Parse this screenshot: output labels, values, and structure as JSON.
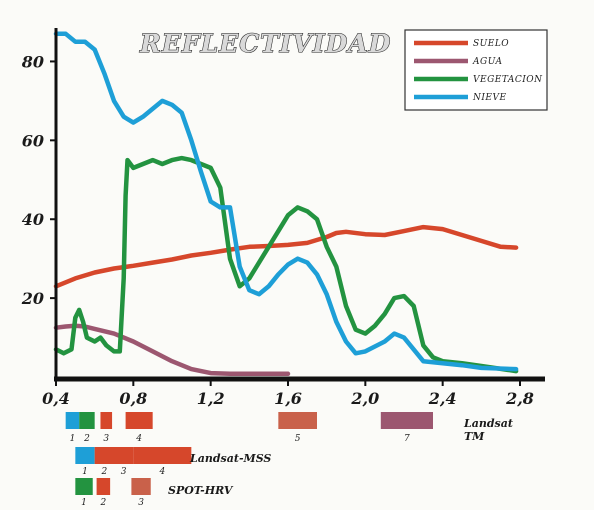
{
  "chart_data": {
    "type": "line",
    "title": "REFLECTIVIDAD",
    "xlabel": "",
    "ylabel": "",
    "xlim": [
      0.4,
      2.8
    ],
    "ylim": [
      0,
      90
    ],
    "x_ticks": [
      "0,4",
      "0,8",
      "1,2",
      "1,6",
      "2,0",
      "2,4",
      "2,8"
    ],
    "x_tick_values": [
      0.4,
      0.8,
      1.2,
      1.6,
      2.0,
      2.4,
      2.8
    ],
    "y_ticks": [
      "20",
      "40",
      "60",
      "80"
    ],
    "y_tick_values": [
      20,
      40,
      60,
      80
    ],
    "grid": false,
    "legend_position": "top-right",
    "series": [
      {
        "name": "SUELO",
        "color": "#d6472b",
        "points": [
          [
            0.4,
            23
          ],
          [
            0.5,
            25
          ],
          [
            0.6,
            26.5
          ],
          [
            0.7,
            27.5
          ],
          [
            0.8,
            28.2
          ],
          [
            0.9,
            29
          ],
          [
            1.0,
            29.8
          ],
          [
            1.1,
            30.8
          ],
          [
            1.2,
            31.5
          ],
          [
            1.3,
            32.3
          ],
          [
            1.4,
            33
          ],
          [
            1.5,
            33.2
          ],
          [
            1.6,
            33.5
          ],
          [
            1.7,
            34
          ],
          [
            1.8,
            35.5
          ],
          [
            1.85,
            36.5
          ],
          [
            1.9,
            36.8
          ],
          [
            2.0,
            36.2
          ],
          [
            2.1,
            36
          ],
          [
            2.2,
            37
          ],
          [
            2.3,
            38
          ],
          [
            2.4,
            37.5
          ],
          [
            2.5,
            36
          ],
          [
            2.6,
            34.5
          ],
          [
            2.7,
            33
          ],
          [
            2.78,
            32.8
          ]
        ]
      },
      {
        "name": "AGUA",
        "color": "#9c5770",
        "points": [
          [
            0.4,
            12.5
          ],
          [
            0.45,
            12.8
          ],
          [
            0.5,
            13
          ],
          [
            0.55,
            12.8
          ],
          [
            0.6,
            12.2
          ],
          [
            0.7,
            11
          ],
          [
            0.8,
            9
          ],
          [
            0.9,
            6.5
          ],
          [
            1.0,
            4
          ],
          [
            1.1,
            2
          ],
          [
            1.2,
            1
          ],
          [
            1.3,
            0.8
          ],
          [
            1.4,
            0.8
          ],
          [
            1.5,
            0.8
          ],
          [
            1.6,
            0.8
          ]
        ]
      },
      {
        "name": "VEGETACION",
        "color": "#239340",
        "points": [
          [
            0.4,
            7
          ],
          [
            0.44,
            6
          ],
          [
            0.48,
            7
          ],
          [
            0.5,
            15
          ],
          [
            0.52,
            17
          ],
          [
            0.54,
            14
          ],
          [
            0.56,
            10
          ],
          [
            0.6,
            9
          ],
          [
            0.63,
            10
          ],
          [
            0.66,
            8
          ],
          [
            0.7,
            6.5
          ],
          [
            0.73,
            6.5
          ],
          [
            0.75,
            25
          ],
          [
            0.76,
            46
          ],
          [
            0.77,
            55
          ],
          [
            0.8,
            53
          ],
          [
            0.85,
            54
          ],
          [
            0.9,
            55
          ],
          [
            0.95,
            54
          ],
          [
            1.0,
            55
          ],
          [
            1.05,
            55.5
          ],
          [
            1.1,
            55
          ],
          [
            1.2,
            53
          ],
          [
            1.25,
            48
          ],
          [
            1.3,
            30
          ],
          [
            1.35,
            23
          ],
          [
            1.4,
            25
          ],
          [
            1.5,
            33
          ],
          [
            1.6,
            41
          ],
          [
            1.65,
            43
          ],
          [
            1.7,
            42
          ],
          [
            1.75,
            40
          ],
          [
            1.8,
            33
          ],
          [
            1.85,
            28
          ],
          [
            1.9,
            18
          ],
          [
            1.95,
            12
          ],
          [
            2.0,
            11
          ],
          [
            2.05,
            13
          ],
          [
            2.1,
            16
          ],
          [
            2.15,
            20
          ],
          [
            2.2,
            20.5
          ],
          [
            2.25,
            18
          ],
          [
            2.3,
            8
          ],
          [
            2.35,
            5
          ],
          [
            2.4,
            4
          ],
          [
            2.5,
            3.5
          ],
          [
            2.6,
            2.8
          ],
          [
            2.78,
            1.5
          ]
        ]
      },
      {
        "name": "NIEVE",
        "color": "#1e9fd7",
        "points": [
          [
            0.4,
            87
          ],
          [
            0.45,
            87
          ],
          [
            0.5,
            85
          ],
          [
            0.55,
            85
          ],
          [
            0.6,
            83
          ],
          [
            0.65,
            77
          ],
          [
            0.7,
            70
          ],
          [
            0.75,
            66
          ],
          [
            0.8,
            64.5
          ],
          [
            0.85,
            66
          ],
          [
            0.9,
            68
          ],
          [
            0.95,
            70
          ],
          [
            1.0,
            69
          ],
          [
            1.05,
            67
          ],
          [
            1.1,
            60
          ],
          [
            1.15,
            52
          ],
          [
            1.2,
            44.5
          ],
          [
            1.25,
            43
          ],
          [
            1.3,
            43
          ],
          [
            1.35,
            28
          ],
          [
            1.4,
            22
          ],
          [
            1.45,
            21
          ],
          [
            1.5,
            23
          ],
          [
            1.55,
            26
          ],
          [
            1.6,
            28.5
          ],
          [
            1.65,
            30
          ],
          [
            1.7,
            29
          ],
          [
            1.75,
            26
          ],
          [
            1.8,
            21
          ],
          [
            1.85,
            14
          ],
          [
            1.9,
            9
          ],
          [
            1.95,
            6
          ],
          [
            2.0,
            6.5
          ],
          [
            2.1,
            9
          ],
          [
            2.15,
            11
          ],
          [
            2.2,
            10
          ],
          [
            2.25,
            7
          ],
          [
            2.3,
            4
          ],
          [
            2.4,
            3.5
          ],
          [
            2.5,
            3
          ],
          [
            2.6,
            2.3
          ],
          [
            2.78,
            2
          ]
        ]
      }
    ]
  },
  "bands": {
    "landsat_tm": {
      "label_line1": "Landsat",
      "label_line2": "TM",
      "items": [
        {
          "num": "1",
          "x0": 0.45,
          "x1": 0.52,
          "color": "#1e9fd7"
        },
        {
          "num": "2",
          "x0": 0.52,
          "x1": 0.6,
          "color": "#239340"
        },
        {
          "num": "3",
          "x0": 0.63,
          "x1": 0.69,
          "color": "#d6472b"
        },
        {
          "num": "4",
          "x0": 0.76,
          "x1": 0.9,
          "color": "#d6472b"
        },
        {
          "num": "5",
          "x0": 1.55,
          "x1": 1.75,
          "color": "#c9614a"
        },
        {
          "num": "7",
          "x0": 2.08,
          "x1": 2.35,
          "color": "#9c5770"
        }
      ]
    },
    "landsat_mss": {
      "label": "Landsat-MSS",
      "items": [
        {
          "num": "1",
          "x0": 0.5,
          "x1": 0.6,
          "color": "#1e9fd7"
        },
        {
          "num": "2",
          "x0": 0.6,
          "x1": 0.7,
          "color": "#d6472b"
        },
        {
          "num": "3",
          "x0": 0.7,
          "x1": 0.8,
          "color": "#d6472b"
        },
        {
          "num": "4",
          "x0": 0.8,
          "x1": 1.1,
          "color": "#d6472b"
        }
      ]
    },
    "spot_hrv": {
      "label": "SPOT-HRV",
      "items": [
        {
          "num": "1",
          "x0": 0.5,
          "x1": 0.59,
          "color": "#239340"
        },
        {
          "num": "2",
          "x0": 0.61,
          "x1": 0.68,
          "color": "#d6472b"
        },
        {
          "num": "3",
          "x0": 0.79,
          "x1": 0.89,
          "color": "#c9614a"
        }
      ]
    }
  }
}
